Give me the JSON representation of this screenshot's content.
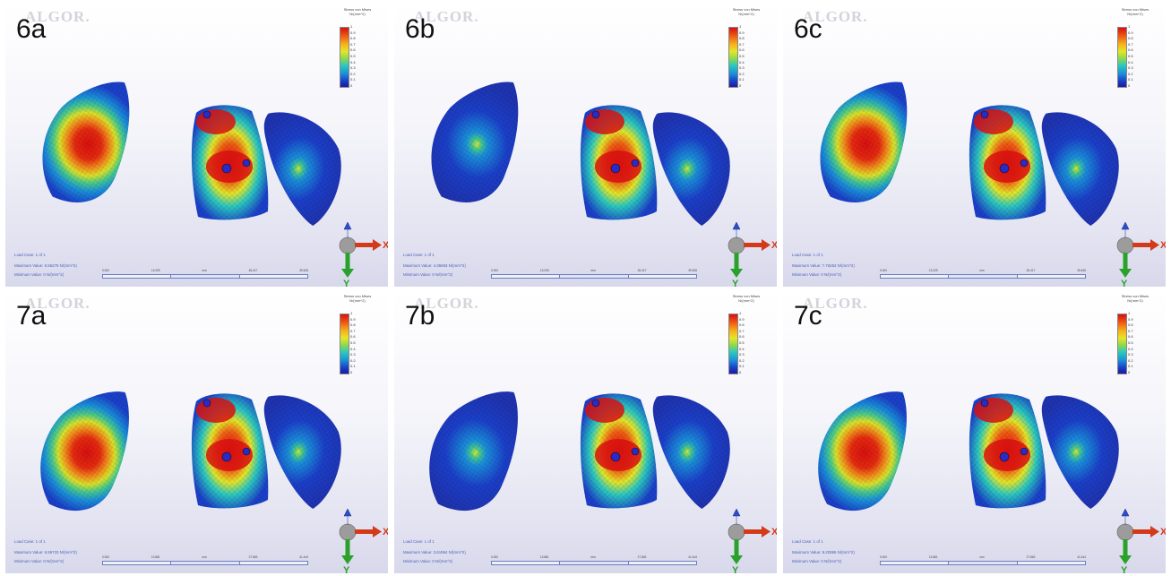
{
  "brand": "ALGOR.",
  "legend_title": "Stress von Mises N/(mm^2)",
  "legend_ticks": [
    "1",
    "0.9",
    "0.8",
    "0.7",
    "0.6",
    "0.5",
    "0.4",
    "0.3",
    "0.2",
    "0.1",
    "0"
  ],
  "axis_labels": {
    "x": "X",
    "y": "Y"
  },
  "panels": [
    {
      "label": "6a",
      "load_case": "Load Case: 1 of 1",
      "max_value": "Maximum Value: 6.56275 N/(mm^2)",
      "min_value": "Minimum Value: 0 N/(mm^2)",
      "scale": [
        "0.000",
        "13.209",
        "mm",
        "26.417",
        "39.626"
      ]
    },
    {
      "label": "6b",
      "load_case": "Load Case: 1 of 1",
      "max_value": "Maximum Value: 4.36693 N/(mm^2)",
      "min_value": "Minimum Value: 0 N/(mm^2)",
      "scale": [
        "0.000",
        "13.209",
        "mm",
        "26.417",
        "39.626"
      ]
    },
    {
      "label": "6c",
      "load_case": "Load Case: 1 of 1",
      "max_value": "Maximum Value: 7.76252 N/(mm^2)",
      "min_value": "Minimum Value: 0 N/(mm^2)",
      "scale": [
        "0.000",
        "13.209",
        "mm",
        "26.417",
        "39.626"
      ]
    },
    {
      "label": "7a",
      "load_case": "Load Case: 1 of 1",
      "max_value": "Maximum Value: 6.59733 N/(mm^2)",
      "min_value": "Minimum Value: 0 N/(mm^2)",
      "scale": [
        "0.000",
        "13.881",
        "mm",
        "27.863",
        "41.444"
      ]
    },
    {
      "label": "7b",
      "load_case": "Load Case: 1 of 1",
      "max_value": "Maximum Value: 3.61964 N/(mm^2)",
      "min_value": "Minimum Value: 0 N/(mm^2)",
      "scale": [
        "0.000",
        "13.881",
        "mm",
        "27.863",
        "41.444"
      ]
    },
    {
      "label": "7c",
      "load_case": "Load Case: 1 of 1",
      "max_value": "Maximum Value: 8.20986 N/(mm^2)",
      "min_value": "Minimum Value: 0 N/(mm^2)",
      "scale": [
        "0.000",
        "13.881",
        "mm",
        "27.863",
        "41.444"
      ]
    }
  ],
  "colors": {
    "stress_high": "#d71010",
    "stress_mid": "#e4e628",
    "stress_low": "#1b3fc8",
    "x_axis": "#d23a1a",
    "y_axis": "#2aa12a"
  }
}
